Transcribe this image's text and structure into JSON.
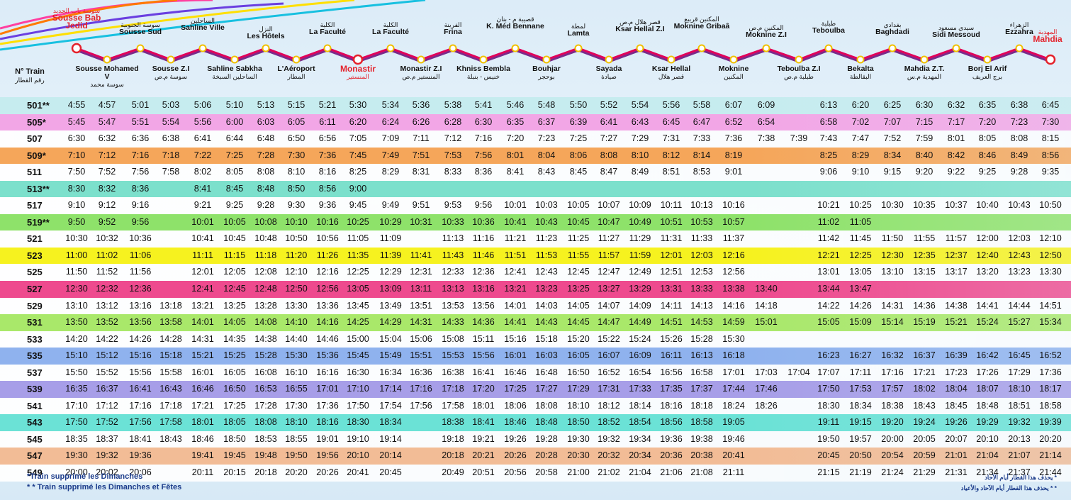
{
  "header": {
    "col_label": "N° Train",
    "col_label_ar": "رقم القطار",
    "top_stations": [
      {
        "ar": "سوسة باب الجديد",
        "fr": "Sousse Bab Jedid",
        "style": "red"
      },
      {
        "ar": "سوسة الجنوبية",
        "fr": "Sousse Sud",
        "style": ""
      },
      {
        "ar": "الساحلين",
        "fr": "Sahline Ville",
        "style": ""
      },
      {
        "ar": "النزل",
        "fr": "Les Hôtels",
        "style": ""
      },
      {
        "ar": "الكلية",
        "fr": "La Faculté",
        "style": ""
      },
      {
        "ar": "الكلية",
        "fr": "La Faculté",
        "style": ""
      },
      {
        "ar": "الفرينة",
        "fr": "Frina",
        "style": ""
      },
      {
        "ar": "قصيبة م - بنان",
        "fr": "K. Méd Bennane",
        "style": ""
      },
      {
        "ar": "لمطة",
        "fr": "Lamta",
        "style": ""
      },
      {
        "ar": "قصر هلال م.ص",
        "fr": "Ksar Hellal Z.I",
        "style": ""
      },
      {
        "ar": "المكنين قريبع",
        "fr": "Moknine Gribaâ",
        "style": ""
      },
      {
        "ar": "المكنين م.ص",
        "fr": "Moknine Z.I",
        "style": ""
      },
      {
        "ar": "طبلبة",
        "fr": "Teboulba",
        "style": ""
      },
      {
        "ar": "بغدادي",
        "fr": "Baghdadi",
        "style": ""
      },
      {
        "ar": "سيدي مسعود",
        "fr": "Sidi Messoud",
        "style": ""
      },
      {
        "ar": "الزهراء",
        "fr": "Ezzahra",
        "style": ""
      },
      {
        "ar": "المهدية",
        "fr": "Mahdia",
        "style": "red"
      }
    ],
    "bottom_stations": [
      {
        "ar": "سوسة محمد",
        "fr": "Sousse Mohamed V",
        "style": ""
      },
      {
        "ar": "سوسة م.ص",
        "fr": "Sousse Z.I",
        "style": ""
      },
      {
        "ar": "الساحلين السبخة",
        "fr": "Sahline Sabkha",
        "style": ""
      },
      {
        "ar": "المطار",
        "fr": "L'Aéroport",
        "style": ""
      },
      {
        "ar": "المنستير",
        "fr": "Monastir",
        "style": "red"
      },
      {
        "ar": "المنستير م.ص",
        "fr": "Monastir Z.I",
        "style": ""
      },
      {
        "ar": "خنيس - بنبلة",
        "fr": "Khniss Bembla",
        "style": ""
      },
      {
        "ar": "بوحجر",
        "fr": "Bouhjar",
        "style": ""
      },
      {
        "ar": "صيادة",
        "fr": "Sayada",
        "style": ""
      },
      {
        "ar": "قصر هلال",
        "fr": "Ksar Hellal",
        "style": ""
      },
      {
        "ar": "المكنين",
        "fr": "Moknine",
        "style": ""
      },
      {
        "ar": "طبلبة م.ص",
        "fr": "Teboulba Z.I",
        "style": ""
      },
      {
        "ar": "البقالطة",
        "fr": "Bekalta",
        "style": ""
      },
      {
        "ar": "المهدية م.س",
        "fr": "Mahdia Z.T.",
        "style": ""
      },
      {
        "ar": "برج العريف",
        "fr": "Borj El Arif",
        "style": ""
      }
    ]
  },
  "colors": {
    "cyan": "#c6ecef",
    "magenta": "#f2a6e6",
    "orange": "#f5a65a",
    "teal": "#7ce0cc",
    "green": "#8ee26a",
    "yellow": "#f6f21f",
    "pink": "#ee4a8e",
    "lime": "#a9e86a",
    "blue": "#8fb2ee",
    "violet": "#a79ee8",
    "aqua": "#6be2d6",
    "peach": "#f2bc96",
    "plain": "#ffffff"
  },
  "trains": [
    {
      "num": "501**",
      "color": "cyan",
      "times": [
        "4:55",
        "4:57",
        "5:01",
        "5:03",
        "5:06",
        "5:10",
        "5:13",
        "5:15",
        "5:21",
        "5:30",
        "5:34",
        "5:36",
        "5:38",
        "5:41",
        "5:46",
        "5:48",
        "5:50",
        "5:52",
        "5:54",
        "5:56",
        "5:58",
        "6:07",
        "6:09",
        "",
        "6:13",
        "6:20",
        "6:25",
        "6:30",
        "6:32",
        "6:35",
        "6:38",
        "6:45"
      ]
    },
    {
      "num": "505*",
      "color": "magenta",
      "times": [
        "5:45",
        "5:47",
        "5:51",
        "5:54",
        "5:56",
        "6:00",
        "6:03",
        "6:05",
        "6:11",
        "6:20",
        "6:24",
        "6:26",
        "6:28",
        "6:30",
        "6:35",
        "6:37",
        "6:39",
        "6:41",
        "6:43",
        "6:45",
        "6:47",
        "6:52",
        "6:54",
        "",
        "6:58",
        "7:02",
        "7:07",
        "7:15",
        "7:17",
        "7:20",
        "7:23",
        "7:30"
      ]
    },
    {
      "num": "507",
      "color": "plain",
      "times": [
        "6:30",
        "6:32",
        "6:36",
        "6:38",
        "6:41",
        "6:44",
        "6:48",
        "6:50",
        "6:56",
        "7:05",
        "7:09",
        "7:11",
        "7:12",
        "7:16",
        "7:20",
        "7:23",
        "7:25",
        "7:27",
        "7:29",
        "7:31",
        "7:33",
        "7:36",
        "7:38",
        "7:39",
        "7:43",
        "7:47",
        "7:52",
        "7:59",
        "8:01",
        "8:05",
        "8:08",
        "8:15"
      ]
    },
    {
      "num": "509*",
      "color": "orange",
      "times": [
        "7:10",
        "7:12",
        "7:16",
        "7:18",
        "7:22",
        "7:25",
        "7:28",
        "7:30",
        "7:36",
        "7:45",
        "7:49",
        "7:51",
        "7:53",
        "7:56",
        "8:01",
        "8:04",
        "8:06",
        "8:08",
        "8:10",
        "8:12",
        "8:14",
        "8:19",
        "",
        "",
        "8:25",
        "8:29",
        "8:34",
        "8:40",
        "8:42",
        "8:46",
        "8:49",
        "8:56"
      ]
    },
    {
      "num": "511",
      "color": "plain",
      "times": [
        "7:50",
        "7:52",
        "7:56",
        "7:58",
        "8:02",
        "8:05",
        "8:08",
        "8:10",
        "8:16",
        "8:25",
        "8:29",
        "8:31",
        "8:33",
        "8:36",
        "8:41",
        "8:43",
        "8:45",
        "8:47",
        "8:49",
        "8:51",
        "8:53",
        "9:01",
        "",
        "",
        "9:06",
        "9:10",
        "9:15",
        "9:20",
        "9:22",
        "9:25",
        "9:28",
        "9:35"
      ]
    },
    {
      "num": "513**",
      "color": "teal",
      "times": [
        "8:30",
        "8:32",
        "8:36",
        "",
        "8:41",
        "8:45",
        "8:48",
        "8:50",
        "8:56",
        "9:00",
        "",
        "",
        "",
        "",
        "",
        "",
        "",
        "",
        "",
        "",
        "",
        "",
        "",
        "",
        "",
        "",
        "",
        "",
        "",
        "",
        "",
        ""
      ]
    },
    {
      "num": "517",
      "color": "plain",
      "times": [
        "9:10",
        "9:12",
        "9:16",
        "",
        "9:21",
        "9:25",
        "9:28",
        "9:30",
        "9:36",
        "9:45",
        "9:49",
        "9:51",
        "9:53",
        "9:56",
        "10:01",
        "10:03",
        "10:05",
        "10:07",
        "10:09",
        "10:11",
        "10:13",
        "10:16",
        "",
        "",
        "10:21",
        "10:25",
        "10:30",
        "10:35",
        "10:37",
        "10:40",
        "10:43",
        "10:50"
      ]
    },
    {
      "num": "519**",
      "color": "green",
      "times": [
        "9:50",
        "9:52",
        "9:56",
        "",
        "10:01",
        "10:05",
        "10:08",
        "10:10",
        "10:16",
        "10:25",
        "10:29",
        "10:31",
        "10:33",
        "10:36",
        "10:41",
        "10:43",
        "10:45",
        "10:47",
        "10:49",
        "10:51",
        "10:53",
        "10:57",
        "",
        "",
        "11:02",
        "11:05",
        "",
        "",
        "",
        "",
        "",
        ""
      ]
    },
    {
      "num": "521",
      "color": "plain",
      "times": [
        "10:30",
        "10:32",
        "10:36",
        "",
        "10:41",
        "10:45",
        "10:48",
        "10:50",
        "10:56",
        "11:05",
        "11:09",
        "",
        "11:13",
        "11:16",
        "11:21",
        "11:23",
        "11:25",
        "11:27",
        "11:29",
        "11:31",
        "11:33",
        "11:37",
        "",
        "",
        "11:42",
        "11:45",
        "11:50",
        "11:55",
        "11:57",
        "12:00",
        "12:03",
        "12:10"
      ]
    },
    {
      "num": "523",
      "color": "yellow",
      "times": [
        "11:00",
        "11:02",
        "11:06",
        "",
        "11:11",
        "11:15",
        "11:18",
        "11:20",
        "11:26",
        "11:35",
        "11:39",
        "11:41",
        "11:43",
        "11:46",
        "11:51",
        "11:53",
        "11:55",
        "11:57",
        "11:59",
        "12:01",
        "12:03",
        "12:16",
        "",
        "",
        "12:21",
        "12:25",
        "12:30",
        "12:35",
        "12:37",
        "12:40",
        "12:43",
        "12:50"
      ]
    },
    {
      "num": "525",
      "color": "plain",
      "times": [
        "11:50",
        "11:52",
        "11:56",
        "",
        "12:01",
        "12:05",
        "12:08",
        "12:10",
        "12:16",
        "12:25",
        "12:29",
        "12:31",
        "12:33",
        "12:36",
        "12:41",
        "12:43",
        "12:45",
        "12:47",
        "12:49",
        "12:51",
        "12:53",
        "12:56",
        "",
        "",
        "13:01",
        "13:05",
        "13:10",
        "13:15",
        "13:17",
        "13:20",
        "13:23",
        "13:30"
      ]
    },
    {
      "num": "527",
      "color": "pink",
      "times": [
        "12:30",
        "12:32",
        "12:36",
        "",
        "12:41",
        "12:45",
        "12:48",
        "12:50",
        "12:56",
        "13:05",
        "13:09",
        "13:11",
        "13:13",
        "13:16",
        "13:21",
        "13:23",
        "13:25",
        "13:27",
        "13:29",
        "13:31",
        "13:33",
        "13:38",
        "13:40",
        "",
        "13:44",
        "13:47",
        "",
        "",
        "",
        "",
        "",
        ""
      ]
    },
    {
      "num": "529",
      "color": "plain",
      "times": [
        "13:10",
        "13:12",
        "13:16",
        "13:18",
        "13:21",
        "13:25",
        "13:28",
        "13:30",
        "13:36",
        "13:45",
        "13:49",
        "13:51",
        "13:53",
        "13:56",
        "14:01",
        "14:03",
        "14:05",
        "14:07",
        "14:09",
        "14:11",
        "14:13",
        "14:16",
        "14:18",
        "",
        "14:22",
        "14:26",
        "14:31",
        "14:36",
        "14:38",
        "14:41",
        "14:44",
        "14:51"
      ]
    },
    {
      "num": "531",
      "color": "lime",
      "times": [
        "13:50",
        "13:52",
        "13:56",
        "13:58",
        "14:01",
        "14:05",
        "14:08",
        "14:10",
        "14:16",
        "14:25",
        "14:29",
        "14:31",
        "14:33",
        "14:36",
        "14:41",
        "14:43",
        "14:45",
        "14:47",
        "14:49",
        "14:51",
        "14:53",
        "14:59",
        "15:01",
        "",
        "15:05",
        "15:09",
        "15:14",
        "15:19",
        "15:21",
        "15:24",
        "15:27",
        "15:34"
      ]
    },
    {
      "num": "533",
      "color": "plain",
      "times": [
        "14:20",
        "14:22",
        "14:26",
        "14:28",
        "14:31",
        "14:35",
        "14:38",
        "14:40",
        "14:46",
        "15:00",
        "15:04",
        "15:06",
        "15:08",
        "15:11",
        "15:16",
        "15:18",
        "15:20",
        "15:22",
        "15:24",
        "15:26",
        "15:28",
        "15:30",
        "",
        "",
        "",
        "",
        "",
        "",
        "",
        "",
        "",
        ""
      ]
    },
    {
      "num": "535",
      "color": "blue",
      "times": [
        "15:10",
        "15:12",
        "15:16",
        "15:18",
        "15:21",
        "15:25",
        "15:28",
        "15:30",
        "15:36",
        "15:45",
        "15:49",
        "15:51",
        "15:53",
        "15:56",
        "16:01",
        "16:03",
        "16:05",
        "16:07",
        "16:09",
        "16:11",
        "16:13",
        "16:18",
        "",
        "",
        "16:23",
        "16:27",
        "16:32",
        "16:37",
        "16:39",
        "16:42",
        "16:45",
        "16:52"
      ]
    },
    {
      "num": "537",
      "color": "plain",
      "times": [
        "15:50",
        "15:52",
        "15:56",
        "15:58",
        "16:01",
        "16:05",
        "16:08",
        "16:10",
        "16:16",
        "16:30",
        "16:34",
        "16:36",
        "16:38",
        "16:41",
        "16:46",
        "16:48",
        "16:50",
        "16:52",
        "16:54",
        "16:56",
        "16:58",
        "17:01",
        "17:03",
        "17:04",
        "17:07",
        "17:11",
        "17:16",
        "17:21",
        "17:23",
        "17:26",
        "17:29",
        "17:36"
      ]
    },
    {
      "num": "539",
      "color": "violet",
      "times": [
        "16:35",
        "16:37",
        "16:41",
        "16:43",
        "16:46",
        "16:50",
        "16:53",
        "16:55",
        "17:01",
        "17:10",
        "17:14",
        "17:16",
        "17:18",
        "17:20",
        "17:25",
        "17:27",
        "17:29",
        "17:31",
        "17:33",
        "17:35",
        "17:37",
        "17:44",
        "17:46",
        "",
        "17:50",
        "17:53",
        "17:57",
        "18:02",
        "18:04",
        "18:07",
        "18:10",
        "18:17"
      ]
    },
    {
      "num": "541",
      "color": "plain",
      "times": [
        "17:10",
        "17:12",
        "17:16",
        "17:18",
        "17:21",
        "17:25",
        "17:28",
        "17:30",
        "17:36",
        "17:50",
        "17:54",
        "17:56",
        "17:58",
        "18:01",
        "18:06",
        "18:08",
        "18:10",
        "18:12",
        "18:14",
        "18:16",
        "18:18",
        "18:24",
        "18:26",
        "",
        "18:30",
        "18:34",
        "18:38",
        "18:43",
        "18:45",
        "18:48",
        "18:51",
        "18:58"
      ]
    },
    {
      "num": "543",
      "color": "aqua",
      "times": [
        "17:50",
        "17:52",
        "17:56",
        "17:58",
        "18:01",
        "18:05",
        "18:08",
        "18:10",
        "18:16",
        "18:30",
        "18:34",
        "",
        "18:38",
        "18:41",
        "18:46",
        "18:48",
        "18:50",
        "18:52",
        "18:54",
        "18:56",
        "18:58",
        "19:05",
        "",
        "",
        "19:11",
        "19:15",
        "19:20",
        "19:24",
        "19:26",
        "19:29",
        "19:32",
        "19:39"
      ]
    },
    {
      "num": "545",
      "color": "plain",
      "times": [
        "18:35",
        "18:37",
        "18:41",
        "18:43",
        "18:46",
        "18:50",
        "18:53",
        "18:55",
        "19:01",
        "19:10",
        "19:14",
        "",
        "19:18",
        "19:21",
        "19:26",
        "19:28",
        "19:30",
        "19:32",
        "19:34",
        "19:36",
        "19:38",
        "19:46",
        "",
        "",
        "19:50",
        "19:57",
        "20:00",
        "20:05",
        "20:07",
        "20:10",
        "20:13",
        "20:20"
      ]
    },
    {
      "num": "547",
      "color": "peach",
      "times": [
        "19:30",
        "19:32",
        "19:36",
        "",
        "19:41",
        "19:45",
        "19:48",
        "19:50",
        "19:56",
        "20:10",
        "20:14",
        "",
        "20:18",
        "20:21",
        "20:26",
        "20:28",
        "20:30",
        "20:32",
        "20:34",
        "20:36",
        "20:38",
        "20:41",
        "",
        "",
        "20:45",
        "20:50",
        "20:54",
        "20:59",
        "21:01",
        "21:04",
        "21:07",
        "21:14"
      ]
    },
    {
      "num": "549",
      "color": "plain",
      "times": [
        "20:00",
        "20:02",
        "20:06",
        "",
        "20:11",
        "20:15",
        "20:18",
        "20:20",
        "20:26",
        "20:41",
        "20:45",
        "",
        "20:49",
        "20:51",
        "20:56",
        "20:58",
        "21:00",
        "21:02",
        "21:04",
        "21:06",
        "21:08",
        "21:11",
        "",
        "",
        "21:15",
        "21:19",
        "21:24",
        "21:29",
        "21:31",
        "21:34",
        "21:37",
        "21:44"
      ]
    }
  ],
  "footer": {
    "note1": "*Train supprimé les Dimanches",
    "note2": "* * Train supprimé les Dimanches et Fêtes",
    "note1_ar": "* يحذف هذا القطار أيام الآحاد",
    "note2_ar": "* * يحذف هذا القطار أيام الآحاد والأعياد"
  }
}
